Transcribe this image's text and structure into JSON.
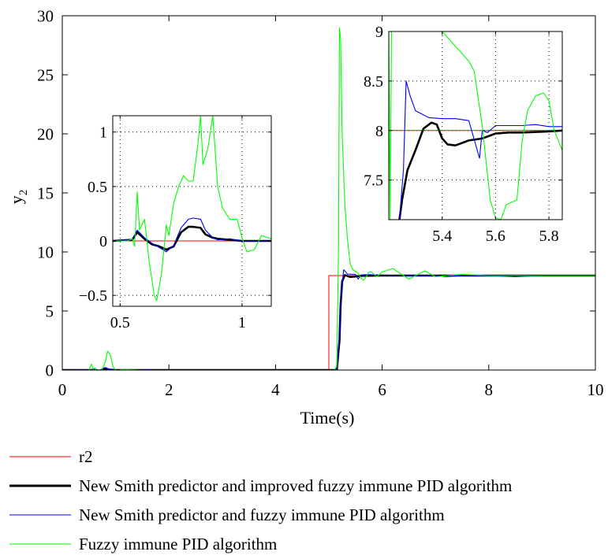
{
  "colors": {
    "r2": "#ff0000",
    "new_smith_improved": "#000000",
    "new_smith": "#0000ff",
    "fuzzy": "#00ff00"
  },
  "chart_data": [
    {
      "id": "main",
      "type": "line",
      "xlabel": "Time(s)",
      "ylabel_base": "y",
      "ylabel_sub": "2",
      "xlim": [
        0,
        10
      ],
      "ylim": [
        0,
        30
      ],
      "xticks": [
        0,
        2,
        4,
        6,
        8,
        10
      ],
      "yticks": [
        0,
        5,
        10,
        15,
        20,
        25,
        30
      ],
      "grid": false,
      "series": [
        {
          "key": "r2",
          "name": "r2",
          "x": [
            0,
            5.0,
            5.0,
            10
          ],
          "y": [
            0,
            0,
            8,
            8
          ]
        },
        {
          "key": "new_smith_improved",
          "name": "New Smith predictor and improved fuzzy immune PID algorithm",
          "x": [
            0,
            0.55,
            0.6,
            0.65,
            0.7,
            0.8,
            0.9,
            1.0,
            5.15,
            5.2,
            5.22,
            5.25,
            5.3,
            5.4,
            5.5,
            5.6,
            6,
            7,
            10
          ],
          "y": [
            0,
            0,
            0.05,
            -0.02,
            -0.05,
            0.12,
            0.03,
            0,
            0,
            2.5,
            5.5,
            7.5,
            8.05,
            7.88,
            7.92,
            7.98,
            8,
            8,
            8
          ]
        },
        {
          "key": "new_smith",
          "name": "New Smith predictor and fuzzy immune PID algorithm",
          "x": [
            0,
            0.55,
            0.6,
            0.7,
            0.8,
            0.9,
            1.0,
            1.5,
            1.6,
            1.7,
            5.15,
            5.2,
            5.23,
            5.28,
            5.35,
            5.5,
            5.55,
            5.6,
            5.7,
            6,
            6.5,
            7,
            7.2,
            7.5,
            8,
            8.5,
            9,
            9.5,
            10
          ],
          "y": [
            0,
            0.02,
            0.1,
            -0.05,
            0.22,
            0.05,
            0,
            0,
            0.05,
            0,
            0,
            3,
            6.5,
            8.5,
            8.12,
            8.1,
            7.7,
            8.05,
            8.08,
            8.05,
            8.0,
            8.0,
            7.9,
            8.0,
            8.0,
            7.9,
            8.0,
            8.0,
            8.0
          ]
        },
        {
          "key": "fuzzy",
          "name": "Fuzzy immune PID algorithm",
          "x": [
            0,
            0.5,
            0.55,
            0.6,
            0.62,
            0.7,
            0.75,
            0.8,
            0.85,
            0.9,
            0.95,
            1.0,
            1.05,
            1.1,
            1.5,
            5.1,
            5.15,
            5.18,
            5.2,
            5.22,
            5.25,
            5.3,
            5.35,
            5.4,
            5.45,
            5.55,
            5.6,
            5.65,
            5.7,
            5.75,
            5.8,
            5.85,
            5.9,
            6.0,
            6.2,
            6.5,
            6.8,
            7.0,
            7.5,
            8,
            9,
            10
          ],
          "y": [
            0,
            0,
            0.5,
            -0.2,
            0.2,
            -0.6,
            0.1,
            0.6,
            1.6,
            1.3,
            0.3,
            0,
            -0.1,
            0.05,
            0,
            0,
            0.3,
            10,
            29,
            28,
            20,
            14,
            11,
            9,
            8.5,
            8.2,
            7.8,
            7.6,
            7.9,
            8.3,
            8.3,
            8.1,
            7.9,
            8.3,
            8.6,
            7.7,
            8.4,
            7.9,
            8.1,
            8.0,
            8.0,
            8.0
          ]
        }
      ]
    },
    {
      "id": "inset_left",
      "type": "line",
      "xlim": [
        0.47,
        1.12
      ],
      "ylim": [
        -0.6,
        1.15
      ],
      "xticks": [
        0.5,
        1
      ],
      "xtick_labels": [
        "0.5",
        "1"
      ],
      "yticks": [
        -0.5,
        0,
        0.5,
        1
      ],
      "ytick_labels": [
        "−0.5",
        "0",
        "0.5",
        "1"
      ],
      "grid": true,
      "series": [
        {
          "key": "r2",
          "x": [
            0.47,
            1.12
          ],
          "y": [
            0,
            0
          ]
        },
        {
          "key": "new_smith_improved",
          "x": [
            0.47,
            0.55,
            0.57,
            0.6,
            0.63,
            0.66,
            0.69,
            0.72,
            0.75,
            0.78,
            0.8,
            0.83,
            0.85,
            0.88,
            0.9,
            0.95,
            1.0,
            1.12
          ],
          "y": [
            0,
            0.01,
            0.08,
            0.02,
            -0.03,
            -0.05,
            -0.08,
            -0.05,
            0.08,
            0.13,
            0.13,
            0.12,
            0.06,
            0.03,
            0.02,
            0.01,
            0,
            0
          ]
        },
        {
          "key": "new_smith",
          "x": [
            0.47,
            0.55,
            0.57,
            0.6,
            0.63,
            0.66,
            0.69,
            0.72,
            0.75,
            0.78,
            0.8,
            0.83,
            0.85,
            0.88,
            0.9,
            0.95,
            1.0,
            1.12
          ],
          "y": [
            0,
            0.01,
            0.1,
            0.03,
            -0.02,
            -0.06,
            -0.1,
            -0.04,
            0.12,
            0.2,
            0.21,
            0.2,
            0.1,
            0.03,
            0.01,
            0.02,
            0,
            0
          ]
        },
        {
          "key": "fuzzy",
          "x": [
            0.47,
            0.53,
            0.55,
            0.56,
            0.57,
            0.58,
            0.6,
            0.62,
            0.64,
            0.65,
            0.67,
            0.69,
            0.7,
            0.72,
            0.74,
            0.76,
            0.78,
            0.8,
            0.82,
            0.83,
            0.84,
            0.86,
            0.88,
            0.9,
            0.92,
            0.95,
            0.98,
            1.0,
            1.02,
            1.05,
            1.08,
            1.12
          ],
          "y": [
            0,
            0,
            0.02,
            -0.05,
            0.45,
            0.1,
            0.2,
            -0.2,
            -0.5,
            -0.55,
            -0.3,
            0.15,
            0.05,
            0.35,
            0.5,
            0.6,
            0.55,
            0.55,
            0.9,
            1.15,
            0.7,
            0.85,
            1.15,
            0.5,
            0.3,
            0.2,
            0.2,
            0.03,
            -0.1,
            -0.08,
            0.05,
            0.02
          ]
        }
      ]
    },
    {
      "id": "inset_right",
      "type": "line",
      "xlim": [
        5.2,
        5.85
      ],
      "ylim": [
        7.1,
        9.0
      ],
      "xticks": [
        5.4,
        5.6,
        5.8
      ],
      "xtick_labels": [
        "5.4",
        "5.6",
        "5.8"
      ],
      "yticks": [
        7.5,
        8,
        8.5,
        9
      ],
      "ytick_labels": [
        "7.5",
        "8",
        "8.5",
        "9"
      ],
      "grid": true,
      "series": [
        {
          "key": "r2",
          "x": [
            5.2,
            5.85
          ],
          "y": [
            8,
            8
          ]
        },
        {
          "key": "new_smith_improved",
          "x": [
            5.24,
            5.25,
            5.27,
            5.3,
            5.33,
            5.36,
            5.38,
            5.4,
            5.42,
            5.45,
            5.5,
            5.55,
            5.6,
            5.65,
            5.7,
            5.8,
            5.85
          ],
          "y": [
            7.1,
            7.3,
            7.6,
            7.8,
            8.02,
            8.08,
            8.06,
            7.92,
            7.86,
            7.85,
            7.9,
            7.92,
            7.97,
            7.98,
            7.98,
            7.99,
            8.0
          ]
        },
        {
          "key": "new_smith",
          "x": [
            5.24,
            5.255,
            5.265,
            5.28,
            5.3,
            5.35,
            5.4,
            5.45,
            5.5,
            5.54,
            5.55,
            5.57,
            5.6,
            5.65,
            5.7,
            5.75,
            5.8,
            5.85
          ],
          "y": [
            7.1,
            7.6,
            8.5,
            8.35,
            8.2,
            8.13,
            8.12,
            8.12,
            8.1,
            7.72,
            8.0,
            7.98,
            8.05,
            8.05,
            8.05,
            8.06,
            8.04,
            8.04
          ]
        },
        {
          "key": "fuzzy",
          "x": [
            5.2,
            5.205,
            5.21,
            5.22,
            5.3,
            5.4,
            5.5,
            5.52,
            5.55,
            5.58,
            5.6,
            5.62,
            5.64,
            5.68,
            5.7,
            5.72,
            5.75,
            5.78,
            5.8,
            5.82,
            5.85
          ],
          "y": [
            9,
            7.1,
            9,
            9.0,
            9.0,
            9.0,
            8.7,
            8.6,
            8.05,
            7.3,
            7.12,
            7.1,
            7.25,
            7.3,
            7.9,
            8.2,
            8.35,
            8.38,
            8.3,
            8.0,
            7.8
          ]
        }
      ]
    }
  ]
}
